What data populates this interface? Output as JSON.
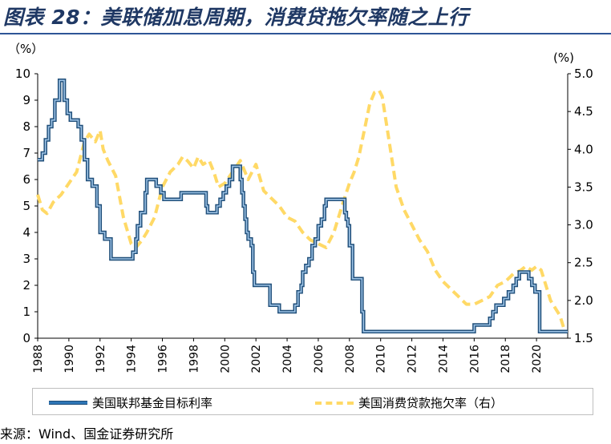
{
  "title": "图表 28：美联储加息周期，消费贷拖欠率随之上行",
  "source": "来源：Wind、国金证券研究所",
  "colors": {
    "fed": "#2e75b6",
    "fed_outline": "#1f4e79",
    "delinquency": "#ffd966",
    "title": "#1f3864"
  },
  "chart_data": {
    "type": "line",
    "left_axis_unit": "（%）",
    "right_axis_unit": "(%)",
    "xlim": [
      1988,
      2022
    ],
    "ylim_left": [
      0,
      10
    ],
    "ylim_right": [
      1.5,
      5.0
    ],
    "x_ticks": [
      "1988",
      "1990",
      "1992",
      "1994",
      "1996",
      "1998",
      "2000",
      "2002",
      "2004",
      "2006",
      "2008",
      "2010",
      "2012",
      "2014",
      "2016",
      "2018",
      "2020"
    ],
    "y_ticks_left": [
      "0",
      "1",
      "2",
      "3",
      "4",
      "5",
      "6",
      "7",
      "8",
      "9",
      "10"
    ],
    "y_ticks_right": [
      "1.5",
      "2.0",
      "2.5",
      "3.0",
      "3.5",
      "4.0",
      "4.5",
      "5.0"
    ],
    "grid": false,
    "legend_position": "bottom",
    "series": [
      {
        "name": "美国联邦基金目标利率",
        "axis": "left",
        "step": true,
        "x": [
          1988.0,
          1988.3,
          1988.5,
          1988.7,
          1988.9,
          1989.1,
          1989.4,
          1989.7,
          1989.9,
          1990.1,
          1990.6,
          1990.8,
          1991.0,
          1991.2,
          1991.5,
          1991.8,
          1992.0,
          1992.3,
          1992.7,
          1993.0,
          1994.1,
          1994.3,
          1994.4,
          1994.6,
          1994.9,
          1995.0,
          1995.6,
          1995.9,
          1996.1,
          1997.2,
          1998.8,
          1998.9,
          1999.0,
          1999.5,
          1999.7,
          1999.9,
          2000.1,
          2000.3,
          2000.5,
          2001.0,
          2001.1,
          2001.2,
          2001.3,
          2001.4,
          2001.5,
          2001.7,
          2001.8,
          2001.9,
          2002.9,
          2003.5,
          2004.5,
          2004.7,
          2004.9,
          2005.0,
          2005.2,
          2005.4,
          2005.6,
          2005.8,
          2006.0,
          2006.2,
          2006.4,
          2006.5,
          2007.7,
          2007.8,
          2007.9,
          2008.0,
          2008.2,
          2008.8,
          2008.9,
          2016.0,
          2017.0,
          2017.2,
          2017.4,
          2017.9,
          2018.2,
          2018.5,
          2018.7,
          2018.9,
          2019.5,
          2019.7,
          2019.9,
          2020.2,
          2022.0
        ],
        "values": [
          6.75,
          7.0,
          7.5,
          8.0,
          8.25,
          9.0,
          9.75,
          9.0,
          8.5,
          8.25,
          8.0,
          7.5,
          6.75,
          6.0,
          5.75,
          5.0,
          4.0,
          3.75,
          3.0,
          3.0,
          3.25,
          3.75,
          4.25,
          4.75,
          5.5,
          6.0,
          5.75,
          5.5,
          5.25,
          5.5,
          5.0,
          4.75,
          4.75,
          5.0,
          5.25,
          5.5,
          5.75,
          6.0,
          6.5,
          6.0,
          5.5,
          5.0,
          4.5,
          4.0,
          3.75,
          3.5,
          2.5,
          2.0,
          1.25,
          1.0,
          1.25,
          1.75,
          2.0,
          2.5,
          2.75,
          3.0,
          3.5,
          3.75,
          4.25,
          4.5,
          5.0,
          5.25,
          4.75,
          4.5,
          4.25,
          3.5,
          2.25,
          1.0,
          0.25,
          0.5,
          0.75,
          1.0,
          1.25,
          1.5,
          1.75,
          2.0,
          2.25,
          2.5,
          2.25,
          2.0,
          1.75,
          0.25,
          0.25
        ]
      },
      {
        "name": "美国消费贷款拖欠率（右）",
        "axis": "right",
        "step": false,
        "x": [
          1988.0,
          1988.3,
          1988.6,
          1989.0,
          1989.5,
          1990.0,
          1990.5,
          1991.0,
          1991.3,
          1991.7,
          1992.0,
          1992.2,
          1992.5,
          1993.0,
          1993.5,
          1994.0,
          1994.3,
          1994.7,
          1995.0,
          1995.5,
          1996.0,
          1996.5,
          1997.0,
          1997.3,
          1997.6,
          1998.0,
          1998.3,
          1998.6,
          1999.0,
          1999.3,
          1999.6,
          2000.0,
          2000.5,
          2001.0,
          2001.5,
          2002.0,
          2002.5,
          2003.0,
          2003.5,
          2004.0,
          2004.5,
          2005.0,
          2005.5,
          2006.0,
          2006.5,
          2007.0,
          2007.3,
          2007.6,
          2008.0,
          2008.3,
          2008.6,
          2009.0,
          2009.3,
          2009.6,
          2009.9,
          2010.1,
          2010.4,
          2010.7,
          2011.0,
          2011.5,
          2012.0,
          2012.5,
          2013.0,
          2013.5,
          2014.0,
          2014.5,
          2015.0,
          2015.5,
          2016.0,
          2016.5,
          2017.0,
          2017.5,
          2018.0,
          2018.5,
          2019.0,
          2019.3,
          2019.7,
          2020.0,
          2020.3,
          2020.6,
          2020.9,
          2021.2,
          2021.5,
          2021.8
        ],
        "values": [
          3.4,
          3.2,
          3.15,
          3.3,
          3.4,
          3.55,
          3.7,
          4.1,
          4.2,
          4.1,
          4.25,
          4.0,
          3.85,
          3.65,
          3.1,
          2.75,
          2.7,
          2.8,
          2.9,
          3.1,
          3.5,
          3.7,
          3.8,
          3.9,
          3.85,
          3.75,
          3.9,
          3.8,
          3.85,
          3.7,
          3.5,
          3.55,
          3.7,
          3.85,
          3.6,
          3.8,
          3.45,
          3.35,
          3.25,
          3.1,
          3.05,
          2.9,
          2.8,
          2.75,
          2.7,
          2.9,
          3.1,
          3.3,
          3.55,
          3.7,
          3.9,
          4.3,
          4.6,
          4.75,
          4.78,
          4.7,
          4.3,
          3.9,
          3.5,
          3.2,
          3.0,
          2.8,
          2.65,
          2.4,
          2.25,
          2.15,
          2.05,
          1.95,
          1.95,
          2.0,
          2.05,
          2.2,
          2.25,
          2.35,
          2.4,
          2.45,
          2.4,
          2.45,
          2.4,
          2.2,
          2.0,
          1.9,
          1.8,
          1.6
        ]
      }
    ]
  }
}
